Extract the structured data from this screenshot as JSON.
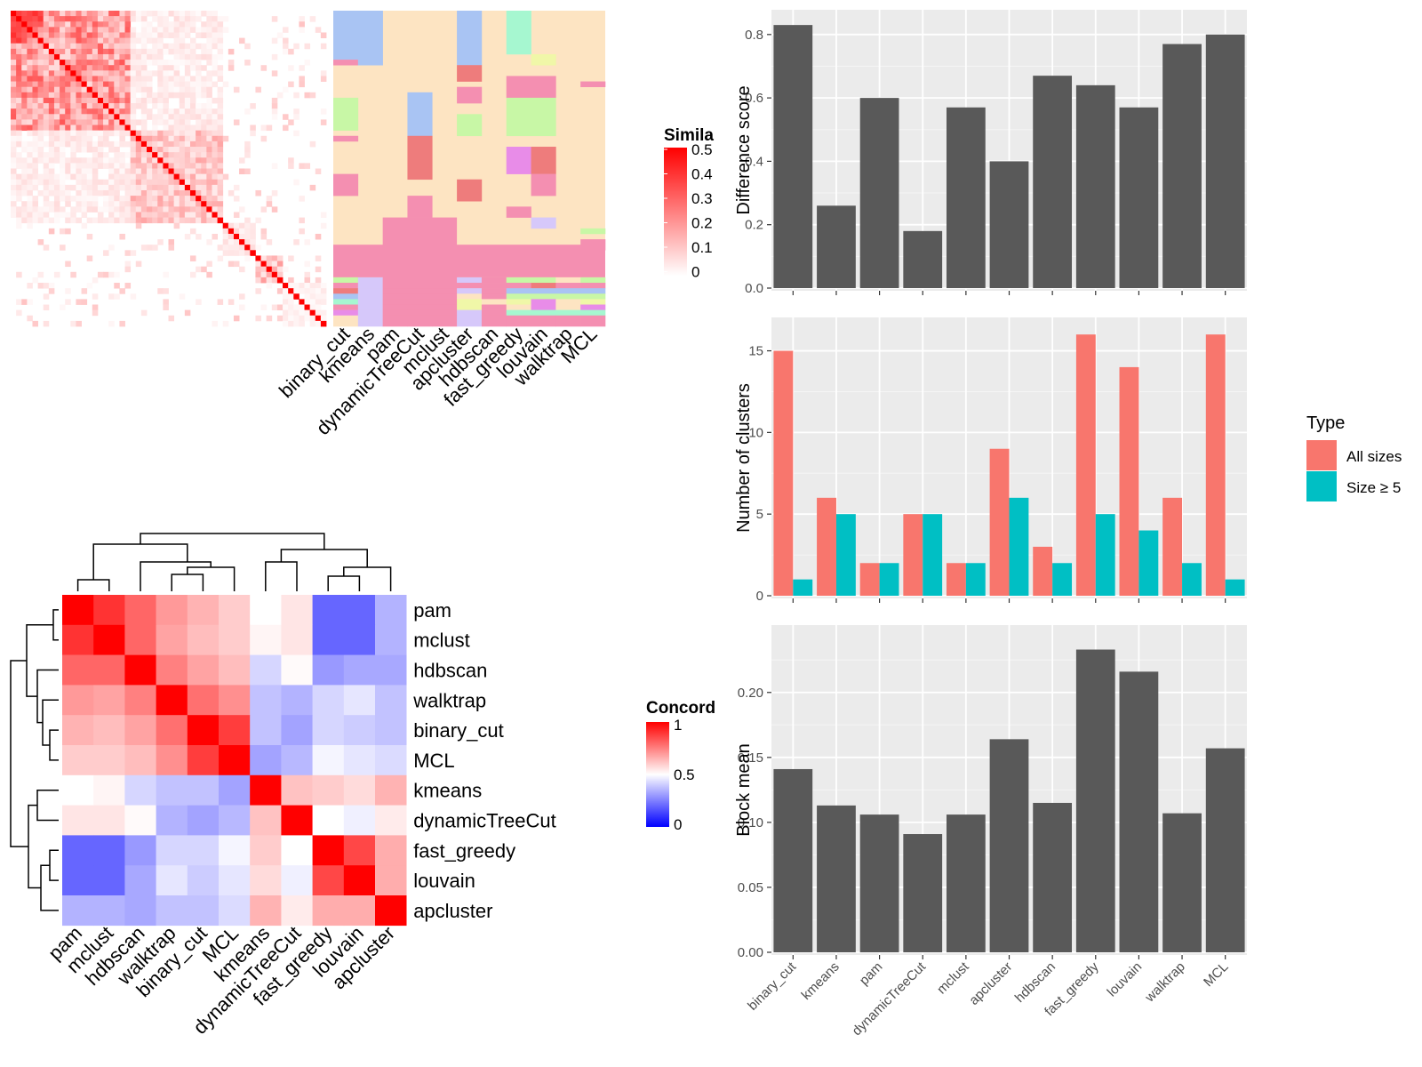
{
  "colors": {
    "panel_bg": "#ebebeb",
    "bar_fill": "#595959",
    "all_sizes": "#f8766d",
    "size_ge_5": "#00bfc4",
    "sim_high": "#ff0000",
    "conc_high": "#ff0000",
    "conc_mid": "#ffffff",
    "conc_low": "#0000ff"
  },
  "methods": [
    "binary_cut",
    "kmeans",
    "pam",
    "dynamicTreeCut",
    "mclust",
    "apcluster",
    "hdbscan",
    "fast_greedy",
    "louvain",
    "walktrap",
    "MCL"
  ],
  "concordance_order": [
    "pam",
    "mclust",
    "hdbscan",
    "walktrap",
    "binary_cut",
    "MCL",
    "kmeans",
    "dynamicTreeCut",
    "fast_greedy",
    "louvain",
    "apcluster"
  ],
  "similarity_legend": {
    "title": "Simila",
    "ticks": [
      "0.5",
      "0.4",
      "0.3",
      "0.2",
      "0.1",
      "0"
    ]
  },
  "concordance_legend": {
    "title": "Concord",
    "ticks": [
      "1",
      "0.5",
      "0"
    ]
  },
  "barplot_legend": {
    "title": "Type",
    "items": [
      "All sizes",
      "Size ≥ 5"
    ]
  },
  "chart_data": [
    {
      "type": "heatmap",
      "name": "term similarity heatmap with cluster assignment strip",
      "value_range": [
        0,
        0.5
      ],
      "column_labels": [
        "binary_cut",
        "kmeans",
        "pam",
        "dynamicTreeCut",
        "mclust",
        "apcluster",
        "hdbscan",
        "fast_greedy",
        "louvain",
        "walktrap",
        "MCL"
      ]
    },
    {
      "type": "heatmap",
      "name": "method concordance heatmap",
      "labels": [
        "pam",
        "mclust",
        "hdbscan",
        "walktrap",
        "binary_cut",
        "MCL",
        "kmeans",
        "dynamicTreeCut",
        "fast_greedy",
        "louvain",
        "apcluster"
      ],
      "matrix": [
        [
          1.0,
          0.9,
          0.8,
          0.7,
          0.65,
          0.6,
          0.5,
          0.55,
          0.2,
          0.2,
          0.35
        ],
        [
          0.9,
          1.0,
          0.8,
          0.68,
          0.63,
          0.6,
          0.52,
          0.55,
          0.2,
          0.2,
          0.35
        ],
        [
          0.8,
          0.8,
          1.0,
          0.75,
          0.68,
          0.63,
          0.42,
          0.51,
          0.3,
          0.33,
          0.33
        ],
        [
          0.7,
          0.68,
          0.75,
          1.0,
          0.78,
          0.72,
          0.38,
          0.35,
          0.42,
          0.45,
          0.38
        ],
        [
          0.65,
          0.63,
          0.68,
          0.78,
          1.0,
          0.88,
          0.38,
          0.32,
          0.42,
          0.4,
          0.38
        ],
        [
          0.6,
          0.6,
          0.63,
          0.72,
          0.88,
          1.0,
          0.32,
          0.36,
          0.48,
          0.45,
          0.43
        ],
        [
          0.5,
          0.52,
          0.42,
          0.38,
          0.38,
          0.32,
          1.0,
          0.62,
          0.6,
          0.57,
          0.65
        ],
        [
          0.55,
          0.55,
          0.51,
          0.35,
          0.32,
          0.36,
          0.62,
          1.0,
          0.5,
          0.47,
          0.54
        ],
        [
          0.2,
          0.2,
          0.3,
          0.42,
          0.42,
          0.48,
          0.6,
          0.5,
          1.0,
          0.86,
          0.66
        ],
        [
          0.2,
          0.2,
          0.33,
          0.45,
          0.4,
          0.45,
          0.57,
          0.47,
          0.86,
          1.0,
          0.66
        ],
        [
          0.35,
          0.35,
          0.33,
          0.38,
          0.38,
          0.43,
          0.65,
          0.54,
          0.66,
          0.66,
          1.0
        ]
      ],
      "value_range": [
        0,
        1
      ]
    },
    {
      "type": "bar",
      "categories": [
        "binary_cut",
        "kmeans",
        "pam",
        "dynamicTreeCut",
        "mclust",
        "apcluster",
        "hdbscan",
        "fast_greedy",
        "louvain",
        "walktrap",
        "MCL"
      ],
      "values": [
        0.83,
        0.26,
        0.6,
        0.18,
        0.57,
        0.4,
        0.67,
        0.64,
        0.57,
        0.77,
        0.8
      ],
      "ylabel": "Difference score",
      "ylim": [
        0,
        0.85
      ],
      "yticks": [
        "0.0",
        "0.2",
        "0.4",
        "0.6",
        "0.8"
      ],
      "grid": true
    },
    {
      "type": "bar",
      "categories": [
        "binary_cut",
        "kmeans",
        "pam",
        "dynamicTreeCut",
        "mclust",
        "apcluster",
        "hdbscan",
        "fast_greedy",
        "louvain",
        "walktrap",
        "MCL"
      ],
      "series": [
        {
          "name": "All sizes",
          "values": [
            15,
            6,
            2,
            5,
            2,
            9,
            3,
            16,
            14,
            6,
            16
          ]
        },
        {
          "name": "Size ≥ 5",
          "values": [
            1,
            5,
            2,
            5,
            2,
            6,
            2,
            5,
            4,
            2,
            1
          ]
        }
      ],
      "ylabel": "Number of clusters",
      "ylim": [
        0,
        16.5
      ],
      "yticks": [
        "0",
        "5",
        "10",
        "15"
      ],
      "legend": "right",
      "grid": true
    },
    {
      "type": "bar",
      "categories": [
        "binary_cut",
        "kmeans",
        "pam",
        "dynamicTreeCut",
        "mclust",
        "apcluster",
        "hdbscan",
        "fast_greedy",
        "louvain",
        "walktrap",
        "MCL"
      ],
      "values": [
        0.141,
        0.113,
        0.106,
        0.091,
        0.106,
        0.164,
        0.115,
        0.233,
        0.216,
        0.107,
        0.157
      ],
      "ylabel": "Block mean",
      "ylim": [
        0,
        0.245
      ],
      "yticks": [
        "0.00",
        "0.05",
        "0.10",
        "0.15",
        "0.20"
      ],
      "grid": true
    }
  ]
}
